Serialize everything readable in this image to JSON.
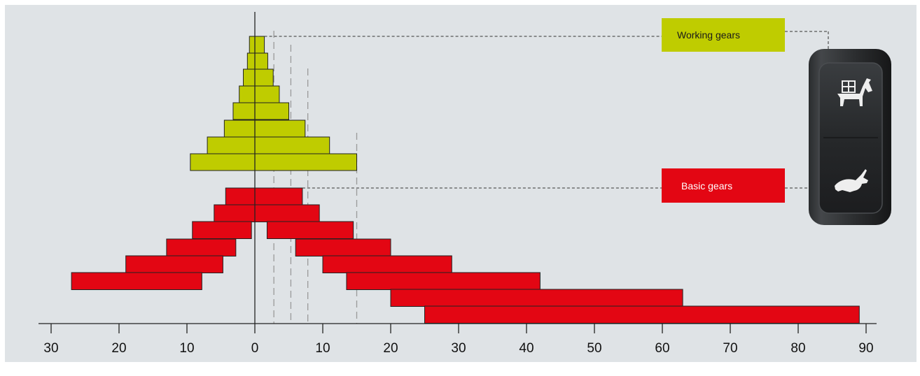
{
  "chart_data": {
    "type": "bar",
    "xlim": [
      -30,
      90
    ],
    "x_ticks": [
      -30,
      -20,
      -10,
      0,
      10,
      20,
      30,
      40,
      50,
      60,
      70,
      80,
      90
    ],
    "x_tick_labels": [
      "30",
      "20",
      "10",
      "0",
      "10",
      "20",
      "30",
      "40",
      "50",
      "60",
      "70",
      "80",
      "90"
    ],
    "x_scale_note_left": "left of 0 uses the same tick spacing as right",
    "series": [
      {
        "name": "Working gears",
        "color": "#bfcc00",
        "bars": [
          {
            "start": -0.8,
            "end": 1.4
          },
          {
            "start": -1.1,
            "end": 1.9
          },
          {
            "start": -1.7,
            "end": 2.7
          },
          {
            "start": -2.3,
            "end": 3.6
          },
          {
            "start": -3.2,
            "end": 5.0
          },
          {
            "start": -4.5,
            "end": 7.4
          },
          {
            "start": -7.0,
            "end": 11.0
          },
          {
            "start": -9.5,
            "end": 15.0
          }
        ]
      },
      {
        "name": "Basic gears",
        "color": "#e30613",
        "bars": [
          {
            "start": -4.3,
            "end": 7.0
          },
          {
            "start": -6.0,
            "end": 9.5
          },
          {
            "start": -9.2,
            "end": 14.5
          },
          {
            "start": -13.0,
            "end": 20.0
          },
          {
            "start": -19.0,
            "end": 29.0
          },
          {
            "start": -27.0,
            "end": 42.0
          },
          {
            "start": 20.0,
            "end": 63.0
          },
          {
            "start": 25.0,
            "end": 89.0
          }
        ],
        "gaps": [
          {
            "row": 2,
            "from": -0.5,
            "to": 1.8
          },
          {
            "row": 3,
            "from": -2.8,
            "to": 6.0
          },
          {
            "row": 4,
            "from": -4.7,
            "to": 10.0
          },
          {
            "row": 5,
            "from": -7.8,
            "to": 13.5
          }
        ]
      }
    ],
    "reference_lines": [
      2.8,
      5.3,
      7.8,
      15.0
    ]
  },
  "legend": {
    "working_label": "Working gears",
    "basic_label": "Basic gears",
    "working_color": "#bfcc00",
    "basic_color": "#e30613"
  },
  "switch": {
    "upper_icon": "tortoise-donkey-icon",
    "lower_icon": "hare-icon"
  }
}
